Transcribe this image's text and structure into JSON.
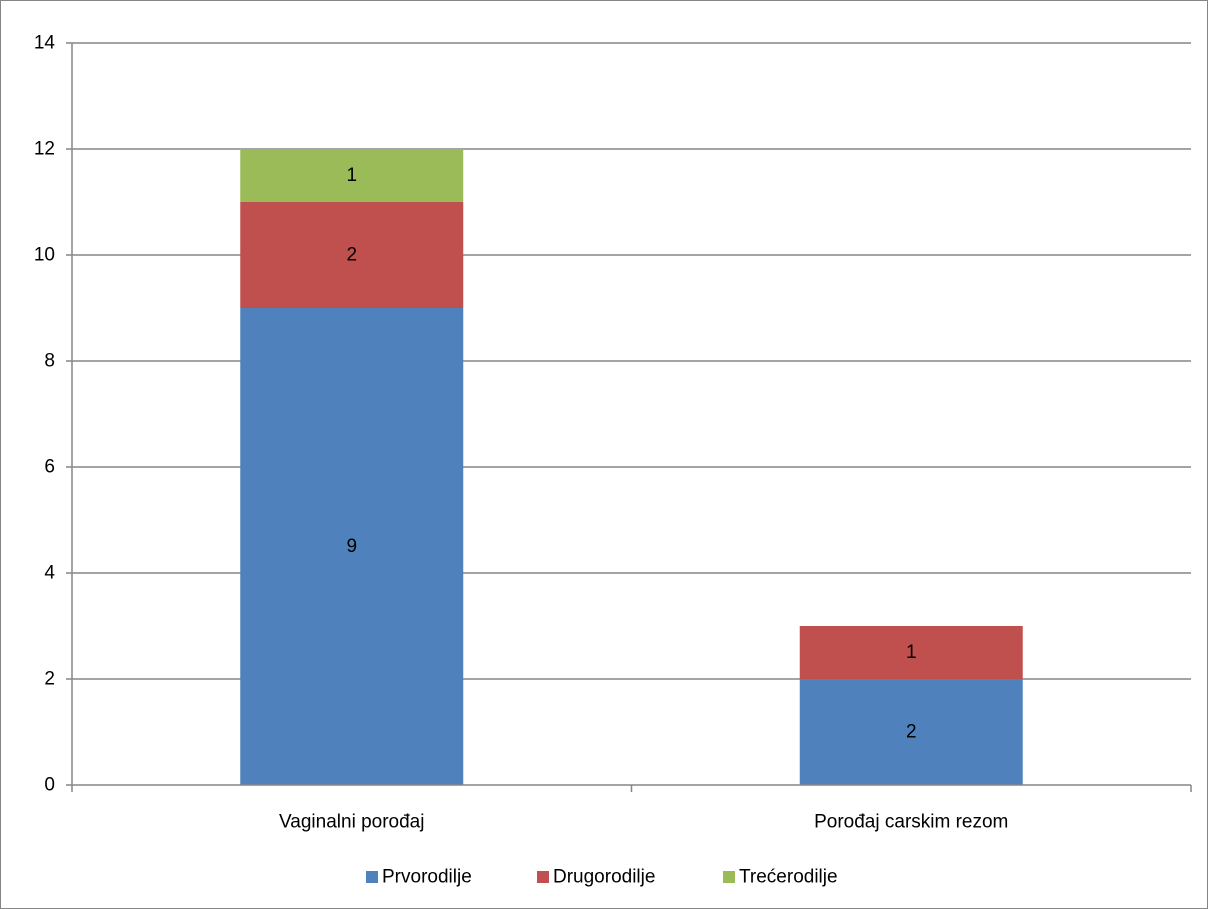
{
  "chart_data": {
    "type": "bar",
    "stacked": true,
    "title": "",
    "xlabel": "",
    "ylabel": "",
    "categories": [
      "Vaginalni porođaj",
      "Porođaj carskim rezom"
    ],
    "series": [
      {
        "name": "Prvorodilje",
        "values": [
          9,
          2
        ],
        "color": "#4f81bd"
      },
      {
        "name": "Drugorodilje",
        "values": [
          2,
          1
        ],
        "color": "#c0504d"
      },
      {
        "name": "Trećerodilje",
        "values": [
          1,
          0
        ],
        "color": "#9bbb59"
      }
    ],
    "data_labels": [
      [
        "9",
        "2"
      ],
      [
        "2",
        "1"
      ],
      [
        "1",
        ""
      ]
    ],
    "ylim": [
      0,
      14
    ],
    "yticks": [
      0,
      2,
      4,
      6,
      8,
      10,
      12,
      14
    ],
    "ytick_labels": [
      "0",
      "2",
      "4",
      "6",
      "8",
      "10",
      "12",
      "14"
    ],
    "grid": true,
    "legend_position": "bottom"
  }
}
